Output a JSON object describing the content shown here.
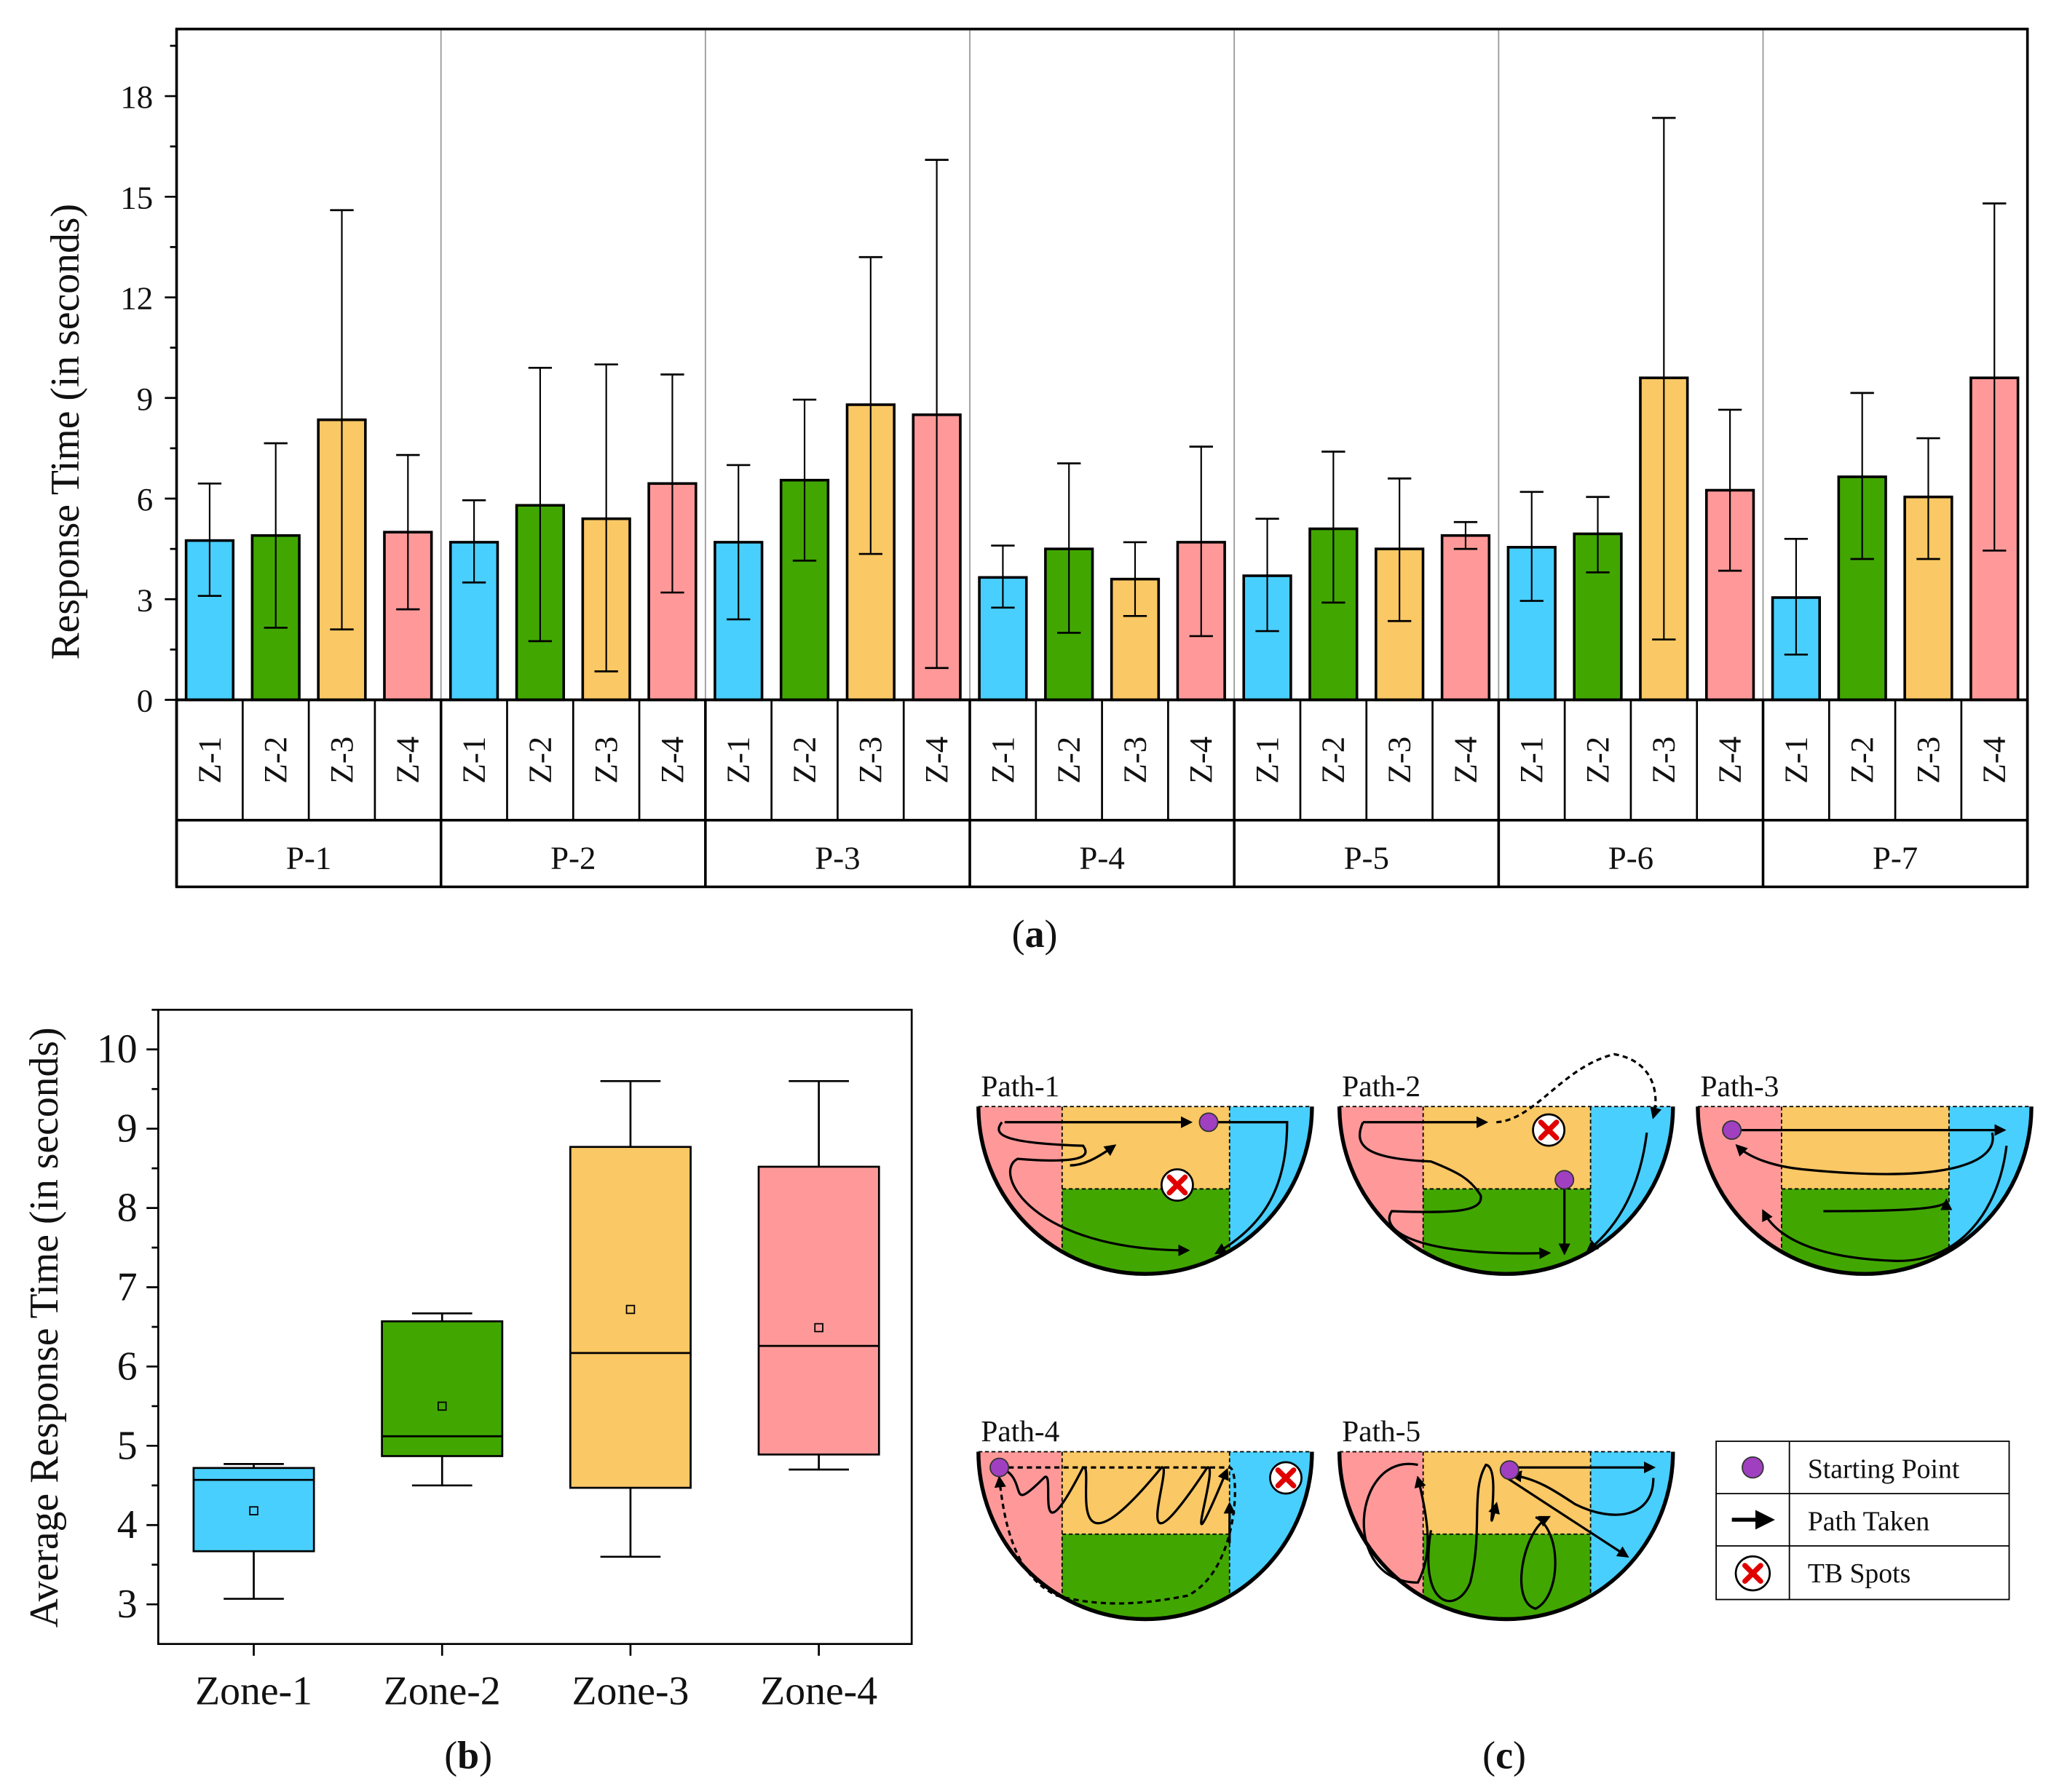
{
  "chart_data": [
    {
      "type": "bar",
      "panel_label": "(a)",
      "panel_letter": "a",
      "ylabel": "Response Time (in seconds)",
      "ylim": [
        0,
        20
      ],
      "yticks": [
        0,
        3,
        6,
        9,
        12,
        15,
        18
      ],
      "grid": false,
      "categories_inner": [
        "Z-1",
        "Z-2",
        "Z-3",
        "Z-4"
      ],
      "categories_outer": [
        "P-1",
        "P-2",
        "P-3",
        "P-4",
        "P-5",
        "P-6",
        "P-7"
      ],
      "colors": [
        "#48CFFD",
        "#41A700",
        "#FAC864",
        "#FF9999"
      ],
      "groups": [
        {
          "name": "P-1",
          "values": [
            4.75,
            4.9,
            8.35,
            5.0
          ],
          "err_low": [
            3.1,
            2.15,
            2.1,
            2.7
          ],
          "err_high": [
            6.45,
            7.65,
            14.6,
            7.3
          ]
        },
        {
          "name": "P-2",
          "values": [
            4.7,
            5.8,
            5.4,
            6.45
          ],
          "err_low": [
            3.5,
            1.75,
            0.85,
            3.2
          ],
          "err_high": [
            5.95,
            9.9,
            10.0,
            9.7
          ]
        },
        {
          "name": "P-3",
          "values": [
            4.7,
            6.55,
            8.8,
            8.5
          ],
          "err_low": [
            2.4,
            4.15,
            4.35,
            0.95
          ],
          "err_high": [
            7.0,
            8.95,
            13.2,
            16.1
          ]
        },
        {
          "name": "P-4",
          "values": [
            3.65,
            4.5,
            3.6,
            4.7
          ],
          "err_low": [
            2.75,
            2.0,
            2.5,
            1.9
          ],
          "err_high": [
            4.6,
            7.05,
            4.7,
            7.55
          ]
        },
        {
          "name": "P-5",
          "values": [
            3.7,
            5.1,
            4.5,
            4.9
          ],
          "err_low": [
            2.05,
            2.9,
            2.35,
            4.5
          ],
          "err_high": [
            5.4,
            7.4,
            6.6,
            5.3
          ]
        },
        {
          "name": "P-6",
          "values": [
            4.55,
            4.95,
            9.6,
            6.25
          ],
          "err_low": [
            2.95,
            3.8,
            1.8,
            3.85
          ],
          "err_high": [
            6.2,
            6.05,
            17.35,
            8.65
          ]
        },
        {
          "name": "P-7",
          "values": [
            3.05,
            6.65,
            6.05,
            9.6
          ],
          "err_low": [
            1.35,
            4.2,
            4.2,
            4.45
          ],
          "err_high": [
            4.8,
            9.15,
            7.8,
            14.8
          ]
        }
      ]
    },
    {
      "type": "box",
      "panel_label": "(b)",
      "panel_letter": "b",
      "ylabel": "Average Response Time (in seconds)",
      "ylim": [
        2.5,
        10.5
      ],
      "yticks": [
        3,
        4,
        5,
        6,
        7,
        8,
        9,
        10
      ],
      "grid": false,
      "categories": [
        "Zone-1",
        "Zone-2",
        "Zone-3",
        "Zone-4"
      ],
      "colors": [
        "#48CFFD",
        "#41A700",
        "#FAC864",
        "#FF9999"
      ],
      "boxes": [
        {
          "min": 3.07,
          "q1": 3.67,
          "median": 4.57,
          "q3": 4.72,
          "max": 4.77,
          "mean": 4.18
        },
        {
          "min": 4.5,
          "q1": 4.87,
          "median": 5.12,
          "q3": 6.57,
          "max": 6.67,
          "mean": 5.5
        },
        {
          "min": 3.6,
          "q1": 4.47,
          "median": 6.17,
          "q3": 8.77,
          "max": 9.6,
          "mean": 6.72
        },
        {
          "min": 4.7,
          "q1": 4.89,
          "median": 6.26,
          "q3": 8.52,
          "max": 9.6,
          "mean": 6.49
        }
      ]
    }
  ],
  "diagrams": {
    "panel_label": "(c)",
    "panel_letter": "c",
    "zone_colors": {
      "pink": "#FF9999",
      "orange": "#FAC864",
      "green": "#41A700",
      "blue": "#48CFFD"
    },
    "paths": [
      "Path-1",
      "Path-2",
      "Path-3",
      "Path-4",
      "Path-5"
    ],
    "legend": [
      {
        "icon": "starting-point-icon",
        "label": "Starting Point"
      },
      {
        "icon": "arrow-right-icon",
        "label": "Path Taken"
      },
      {
        "icon": "tb-spot-icon",
        "label": "TB Spots"
      }
    ]
  }
}
